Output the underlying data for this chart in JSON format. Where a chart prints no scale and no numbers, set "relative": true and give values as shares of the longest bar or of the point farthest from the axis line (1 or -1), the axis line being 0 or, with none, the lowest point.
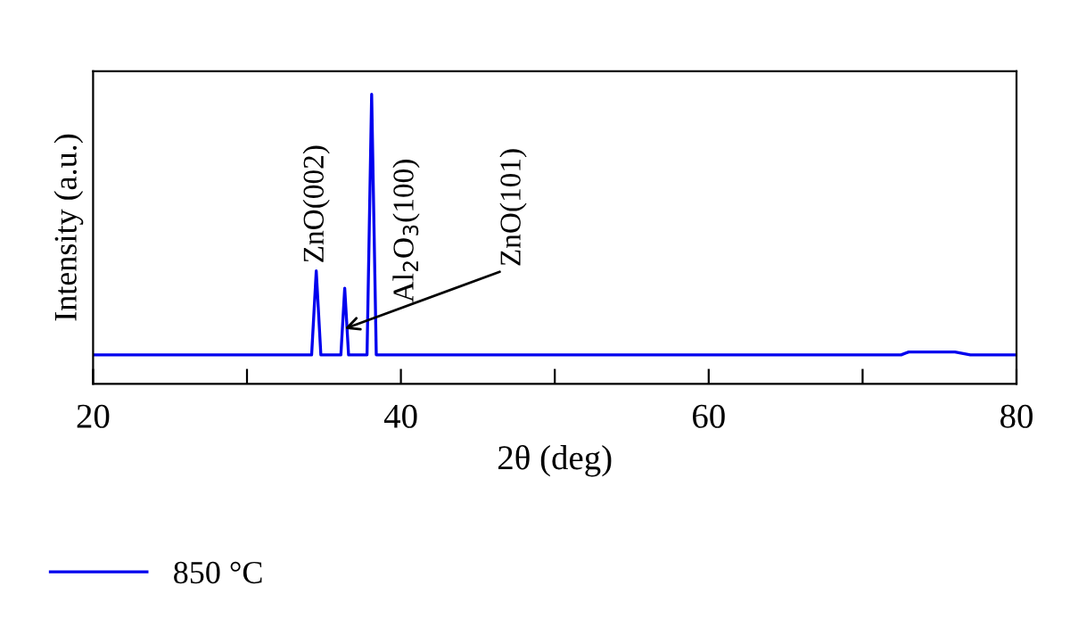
{
  "chart_data": {
    "type": "line",
    "relative": true,
    "xlabel": "2θ (deg)",
    "ylabel": "Intensity (a.u.)",
    "xlim": [
      20,
      80
    ],
    "xticks": [
      20,
      {
        "value": 30,
        "label": null
      },
      40,
      {
        "value": 50,
        "label": null
      },
      60,
      {
        "value": 70,
        "label": null
      },
      80
    ],
    "series": [
      {
        "name": "850 °C",
        "color": "#0000ee",
        "x": [
          20,
          30,
          34.2,
          34.5,
          34.8,
          36.1,
          36.35,
          36.6,
          37.8,
          38.1,
          38.4,
          40,
          50,
          60,
          72.5,
          73,
          76,
          77,
          80
        ],
        "values": [
          0.1,
          0.1,
          0.1,
          0.39,
          0.1,
          0.1,
          0.33,
          0.1,
          0.1,
          1.0,
          0.1,
          0.1,
          0.1,
          0.1,
          0.1,
          0.11,
          0.11,
          0.1,
          0.1
        ]
      }
    ],
    "annotations": [
      {
        "text": "ZnO(002)",
        "x": 34.5,
        "y": 0.39
      },
      {
        "text": "Al$_{2}$O$_{3}$(100)",
        "x": 38.1,
        "y": 0.28
      },
      {
        "text": "ZnO(101)",
        "x": 36.35,
        "y": 0.19
      }
    ],
    "legend": "bottom left",
    "grid": false
  }
}
